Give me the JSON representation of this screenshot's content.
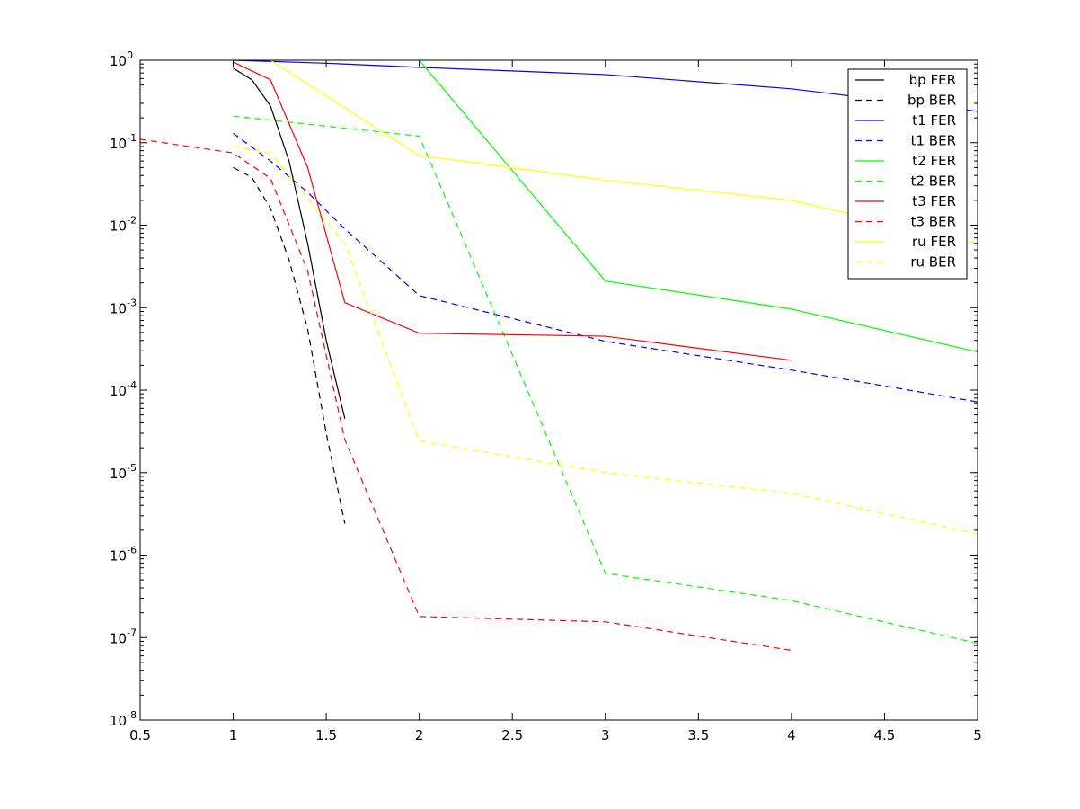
{
  "chart_data": {
    "type": "line",
    "title": "",
    "xlabel": "",
    "ylabel": "",
    "x_scale": "linear",
    "y_scale": "log",
    "xlim": [
      0.5,
      5
    ],
    "ylim": [
      1e-08,
      1
    ],
    "grid": false,
    "legend_position": "top-right",
    "x_ticks": [
      "0.5",
      "1",
      "1.5",
      "2",
      "2.5",
      "3",
      "3.5",
      "4",
      "4.5",
      "5"
    ],
    "y_ticks": [
      {
        "base": "10",
        "exp": "0"
      },
      {
        "base": "10",
        "exp": "-1"
      },
      {
        "base": "10",
        "exp": "-2"
      },
      {
        "base": "10",
        "exp": "-3"
      },
      {
        "base": "10",
        "exp": "-4"
      },
      {
        "base": "10",
        "exp": "-5"
      },
      {
        "base": "10",
        "exp": "-6"
      },
      {
        "base": "10",
        "exp": "-7"
      },
      {
        "base": "10",
        "exp": "-8"
      }
    ],
    "series": [
      {
        "name": "bp FER",
        "color": "#000000",
        "dash": "solid",
        "points": [
          [
            1.0,
            0.8
          ],
          [
            1.1,
            0.58
          ],
          [
            1.2,
            0.28
          ],
          [
            1.3,
            0.06
          ],
          [
            1.4,
            0.006
          ],
          [
            1.5,
            0.0004
          ],
          [
            1.6,
            4.5e-05
          ]
        ]
      },
      {
        "name": "bp BER",
        "color": "#000000",
        "dash": "dashed",
        "points": [
          [
            1.0,
            0.05
          ],
          [
            1.1,
            0.038
          ],
          [
            1.2,
            0.016
          ],
          [
            1.3,
            0.0038
          ],
          [
            1.4,
            0.00055
          ],
          [
            1.5,
            3e-05
          ],
          [
            1.6,
            2.4e-06
          ]
        ]
      },
      {
        "name": "t1 FER",
        "color": "#0000ff",
        "dash": "solid",
        "points": [
          [
            1.0,
            1.0
          ],
          [
            1.5,
            0.92
          ],
          [
            2.0,
            0.82
          ],
          [
            3.0,
            0.67
          ],
          [
            4.0,
            0.45
          ],
          [
            5.0,
            0.24
          ]
        ]
      },
      {
        "name": "t1 BER",
        "color": "#0000ff",
        "dash": "dashed",
        "points": [
          [
            1.0,
            0.13
          ],
          [
            1.2,
            0.06
          ],
          [
            1.4,
            0.025
          ],
          [
            1.6,
            0.009
          ],
          [
            2.0,
            0.0014
          ],
          [
            3.0,
            0.00039
          ],
          [
            4.0,
            0.000175
          ],
          [
            5.0,
            7.2e-05
          ]
        ]
      },
      {
        "name": "t2 FER",
        "color": "#00ff00",
        "dash": "solid",
        "points": [
          [
            2.0,
            1.0
          ],
          [
            3.0,
            0.0021
          ],
          [
            4.0,
            0.00096
          ],
          [
            5.0,
            0.00029
          ]
        ]
      },
      {
        "name": "t2 BER",
        "color": "#00ff00",
        "dash": "dashed",
        "points": [
          [
            1.0,
            0.21
          ],
          [
            2.0,
            0.12
          ],
          [
            3.0,
            6e-07
          ],
          [
            4.0,
            2.8e-07
          ],
          [
            5.0,
            8.5e-08
          ]
        ]
      },
      {
        "name": "t3 FER",
        "color": "#ff0000",
        "dash": "solid",
        "points": [
          [
            1.0,
            0.95
          ],
          [
            1.2,
            0.58
          ],
          [
            1.4,
            0.05
          ],
          [
            1.6,
            0.00115
          ],
          [
            2.0,
            0.00049
          ],
          [
            3.0,
            0.00045
          ],
          [
            4.0,
            0.00023
          ]
        ]
      },
      {
        "name": "t3 BER",
        "color": "#ff0000",
        "dash": "dashed",
        "points": [
          [
            0.5,
            0.11
          ],
          [
            1.0,
            0.075
          ],
          [
            1.2,
            0.037
          ],
          [
            1.4,
            0.0028
          ],
          [
            1.6,
            2.5e-05
          ],
          [
            2.0,
            1.8e-07
          ],
          [
            3.0,
            1.55e-07
          ],
          [
            4.0,
            7e-08
          ]
        ]
      },
      {
        "name": "ru FER",
        "color": "#ffff00",
        "dash": "solid",
        "points": [
          [
            1.2,
            1.0
          ],
          [
            2.0,
            0.07
          ],
          [
            3.0,
            0.035
          ],
          [
            4.0,
            0.02
          ],
          [
            5.0,
            0.006
          ]
        ]
      },
      {
        "name": "ru BER",
        "color": "#ffff00",
        "dash": "dashed",
        "points": [
          [
            1.0,
            0.09
          ],
          [
            1.2,
            0.075
          ],
          [
            1.6,
            0.006
          ],
          [
            2.0,
            2.4e-05
          ],
          [
            3.0,
            1e-05
          ],
          [
            4.0,
            5.6e-06
          ],
          [
            5.0,
            1.8e-06
          ]
        ]
      }
    ]
  }
}
